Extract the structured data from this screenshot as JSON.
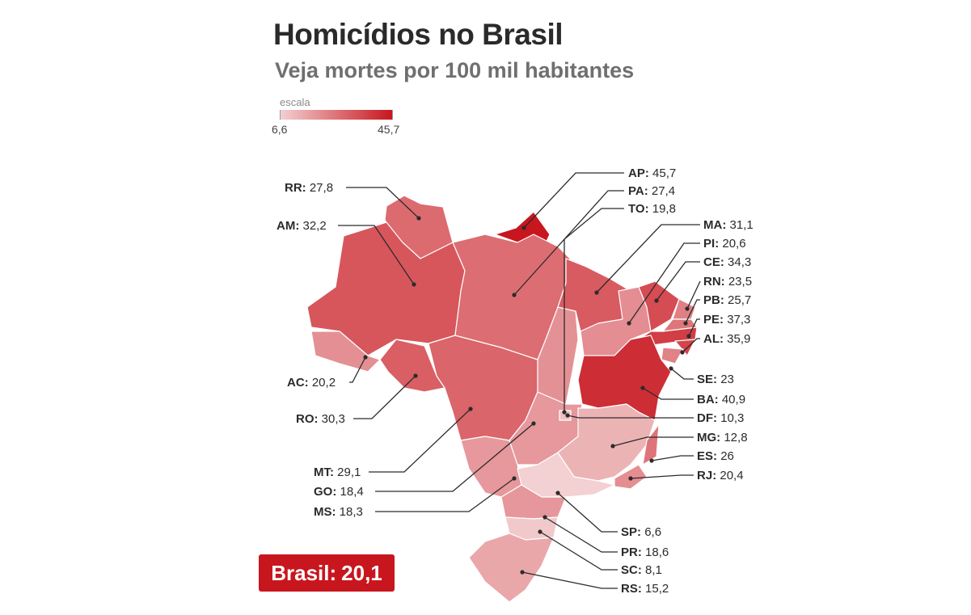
{
  "header": {
    "title": "Homicídios no Brasil",
    "subtitle": "Veja mortes por 100 mil habitantes"
  },
  "scale": {
    "label": "escala",
    "min": "6,6",
    "max": "45,7",
    "min_value": 6.6,
    "max_value": 45.7,
    "color_min": "#f3d0d2",
    "color_max": "#c8161e"
  },
  "brasil": {
    "label": "Brasil:",
    "value": "20,1"
  },
  "states": [
    {
      "code": "RR",
      "value": "27,8",
      "rate": 27.8
    },
    {
      "code": "AM",
      "value": "32,2",
      "rate": 32.2
    },
    {
      "code": "AC",
      "value": "20,2",
      "rate": 20.2
    },
    {
      "code": "RO",
      "value": "30,3",
      "rate": 30.3
    },
    {
      "code": "MT",
      "value": "29,1",
      "rate": 29.1
    },
    {
      "code": "GO",
      "value": "18,4",
      "rate": 18.4
    },
    {
      "code": "MS",
      "value": "18,3",
      "rate": 18.3
    },
    {
      "code": "AP",
      "value": "45,7",
      "rate": 45.7
    },
    {
      "code": "PA",
      "value": "27,4",
      "rate": 27.4
    },
    {
      "code": "TO",
      "value": "19,8",
      "rate": 19.8
    },
    {
      "code": "MA",
      "value": "31,1",
      "rate": 31.1
    },
    {
      "code": "PI",
      "value": "20,6",
      "rate": 20.6
    },
    {
      "code": "CE",
      "value": "34,3",
      "rate": 34.3
    },
    {
      "code": "RN",
      "value": "23,5",
      "rate": 23.5
    },
    {
      "code": "PB",
      "value": "25,7",
      "rate": 25.7
    },
    {
      "code": "PE",
      "value": "37,3",
      "rate": 37.3
    },
    {
      "code": "AL",
      "value": "35,9",
      "rate": 35.9
    },
    {
      "code": "SE",
      "value": "23",
      "rate": 23
    },
    {
      "code": "BA",
      "value": "40,9",
      "rate": 40.9
    },
    {
      "code": "DF",
      "value": "10,3",
      "rate": 10.3
    },
    {
      "code": "MG",
      "value": "12,8",
      "rate": 12.8
    },
    {
      "code": "ES",
      "value": "26",
      "rate": 26
    },
    {
      "code": "RJ",
      "value": "20,4",
      "rate": 20.4
    },
    {
      "code": "SP",
      "value": "6,6",
      "rate": 6.6
    },
    {
      "code": "PR",
      "value": "18,6",
      "rate": 18.6
    },
    {
      "code": "SC",
      "value": "8,1",
      "rate": 8.1
    },
    {
      "code": "RS",
      "value": "15,2",
      "rate": 15.2
    }
  ]
}
